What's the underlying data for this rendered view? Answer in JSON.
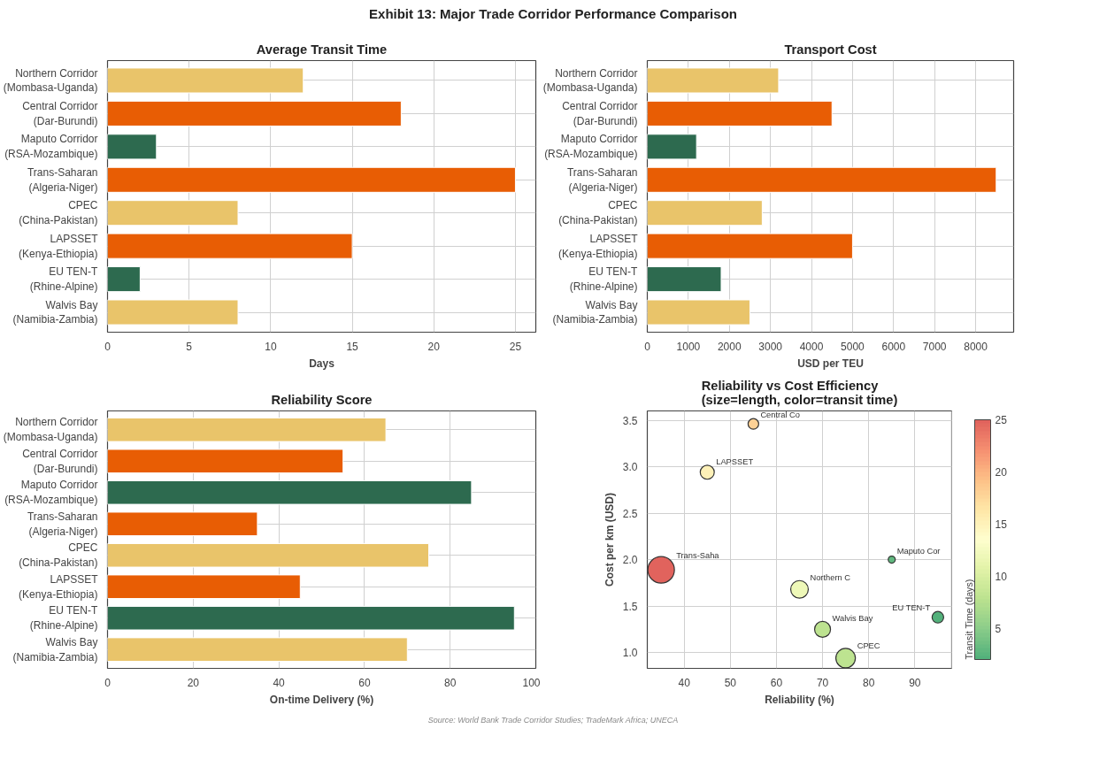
{
  "chart_data": [
    {
      "type": "other",
      "title": "Exhibit 13: Major Trade Corridor Performance Comparison",
      "annotations": [
        "Source: World Bank Trade Corridor Studies; TradeMark Africa; UNECA"
      ]
    },
    {
      "type": "bar",
      "orientation": "horizontal",
      "title": "Average Transit Time",
      "xlabel": "Days",
      "categories": [
        "Northern Corridor\n(Mombasa-Uganda)",
        "Central Corridor\n(Dar-Burundi)",
        "Maputo Corridor\n(RSA-Mozambique)",
        "Trans-Saharan\n(Algeria-Niger)",
        "CPEC\n(China-Pakistan)",
        "LAPSSET\n(Kenya-Ethiopia)",
        "EU TEN-T\n(Rhine-Alpine)",
        "Walvis Bay\n(Namibia-Zambia)"
      ],
      "values": [
        12,
        18,
        3,
        25,
        8,
        15,
        2,
        8
      ],
      "colors": [
        "#e9c46a",
        "#e85d04",
        "#2d6a4f",
        "#e85d04",
        "#e9c46a",
        "#e85d04",
        "#2d6a4f",
        "#e9c46a"
      ],
      "xlim": [
        0,
        26.25
      ],
      "xticks": [
        0,
        5,
        10,
        15,
        20,
        25
      ],
      "grid": true
    },
    {
      "type": "bar",
      "orientation": "horizontal",
      "title": "Transport Cost",
      "xlabel": "USD per TEU",
      "categories": [
        "Northern Corridor\n(Mombasa-Uganda)",
        "Central Corridor\n(Dar-Burundi)",
        "Maputo Corridor\n(RSA-Mozambique)",
        "Trans-Saharan\n(Algeria-Niger)",
        "CPEC\n(China-Pakistan)",
        "LAPSSET\n(Kenya-Ethiopia)",
        "EU TEN-T\n(Rhine-Alpine)",
        "Walvis Bay\n(Namibia-Zambia)"
      ],
      "values": [
        3200,
        4500,
        1200,
        8500,
        2800,
        5000,
        1800,
        2500
      ],
      "colors": [
        "#e9c46a",
        "#e85d04",
        "#2d6a4f",
        "#e85d04",
        "#e9c46a",
        "#e85d04",
        "#2d6a4f",
        "#e9c46a"
      ],
      "xlim": [
        0,
        8925
      ],
      "xticks": [
        0,
        1000,
        2000,
        3000,
        4000,
        5000,
        6000,
        7000,
        8000
      ],
      "grid": true
    },
    {
      "type": "bar",
      "orientation": "horizontal",
      "title": "Reliability Score",
      "xlabel": "On-time Delivery (%)",
      "categories": [
        "Northern Corridor\n(Mombasa-Uganda)",
        "Central Corridor\n(Dar-Burundi)",
        "Maputo Corridor\n(RSA-Mozambique)",
        "Trans-Saharan\n(Algeria-Niger)",
        "CPEC\n(China-Pakistan)",
        "LAPSSET\n(Kenya-Ethiopia)",
        "EU TEN-T\n(Rhine-Alpine)",
        "Walvis Bay\n(Namibia-Zambia)"
      ],
      "values": [
        65,
        55,
        85,
        35,
        75,
        45,
        95,
        70
      ],
      "colors": [
        "#e9c46a",
        "#e85d04",
        "#2d6a4f",
        "#e85d04",
        "#e9c46a",
        "#e85d04",
        "#2d6a4f",
        "#e9c46a"
      ],
      "xlim": [
        0,
        100
      ],
      "xticks": [
        0,
        20,
        40,
        60,
        80,
        100
      ],
      "grid": true
    },
    {
      "type": "bubble",
      "title": "Reliability vs Cost Efficiency\n(size=length, color=transit time)",
      "xlabel": "Reliability (%)",
      "ylabel": "Cost per km (USD)",
      "clabel": "Transit Time (days)",
      "x": [
        65,
        55,
        85,
        35,
        75,
        45,
        95,
        70
      ],
      "values": [
        1.68,
        3.46,
        2.0,
        1.89,
        0.94,
        2.94,
        1.38,
        1.25
      ],
      "sizes": [
        0.44,
        0.16,
        0.07,
        1,
        0.54,
        0.28,
        0.19,
        0.36
      ],
      "cvalues": [
        12,
        18,
        3,
        25,
        8,
        15,
        2,
        8
      ],
      "clim": [
        2,
        25
      ],
      "cticks": [
        5,
        10,
        15,
        20,
        25
      ],
      "xlim": [
        32,
        98
      ],
      "ylim": [
        0.83,
        3.6
      ],
      "xticks": [
        40,
        50,
        60,
        70,
        80,
        90
      ],
      "yticks": [
        {
          "value": 1.0,
          "label": "1.0"
        },
        1.5,
        {
          "value": 2.0,
          "label": "2.0"
        },
        2.5,
        {
          "value": 3.0,
          "label": "3.0"
        },
        3.5
      ],
      "marker": "circle",
      "grid": true,
      "annotations": [
        {
          "text": "Northern C",
          "x": 65,
          "y": 1.68
        },
        {
          "text": "Central Co",
          "x": 55,
          "y": 3.46
        },
        {
          "text": "Maputo Cor",
          "x": 85,
          "y": 2.0
        },
        {
          "text": "Trans-Saha",
          "x": 35,
          "y": 1.89
        },
        {
          "text": "CPEC",
          "x": 75,
          "y": 0.94
        },
        {
          "text": "LAPSSET",
          "x": 45,
          "y": 2.94
        },
        {
          "text": "EU TEN-T",
          "x": 95,
          "y": 1.38
        },
        {
          "text": "Walvis Bay",
          "x": 70,
          "y": 1.25
        }
      ]
    }
  ]
}
